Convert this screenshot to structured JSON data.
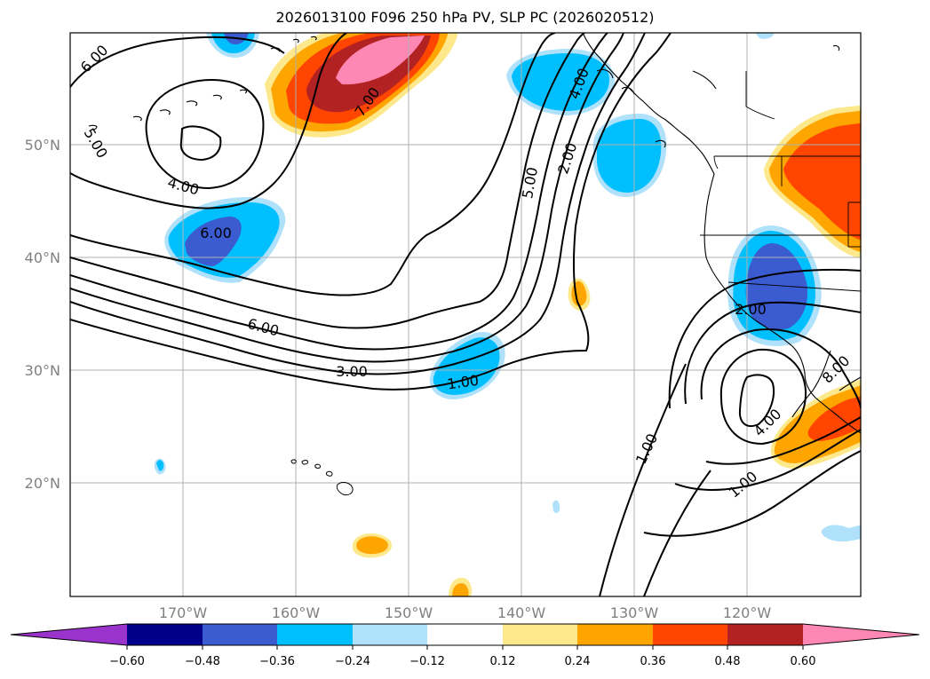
{
  "title": "2026013100 F096 250 hPa PV, SLP PC (2026020512)",
  "colors": {
    "c_m060": "#9a33cc",
    "c_m048": "#00008b",
    "c_m036": "#3b5bd1",
    "c_m024": "#00bfff",
    "c_m012": "#afe1fb",
    "c_p012": "#fde98b",
    "c_p024": "#ffa500",
    "c_p036": "#ff4500",
    "c_p048": "#b22222",
    "c_p060": "#ff87b4"
  },
  "map": {
    "lat_labels": [
      "50°N",
      "40°N",
      "30°N",
      "20°N"
    ],
    "lon_labels": [
      "170°W",
      "160°W",
      "150°W",
      "140°W",
      "130°W",
      "120°W"
    ],
    "contour_labels": [
      "6.00",
      "5.00",
      "4.00",
      "6.00",
      "7.00",
      "4.00",
      "2.00",
      "5.00",
      "6.00",
      "3.00",
      "1.00",
      "2.00",
      "8.00",
      "4.00",
      "1.00",
      "1.00"
    ]
  },
  "colorbar": {
    "ticks": [
      "−0.60",
      "−0.48",
      "−0.36",
      "−0.24",
      "−0.12",
      "0.12",
      "0.24",
      "0.36",
      "0.48",
      "0.60"
    ]
  }
}
